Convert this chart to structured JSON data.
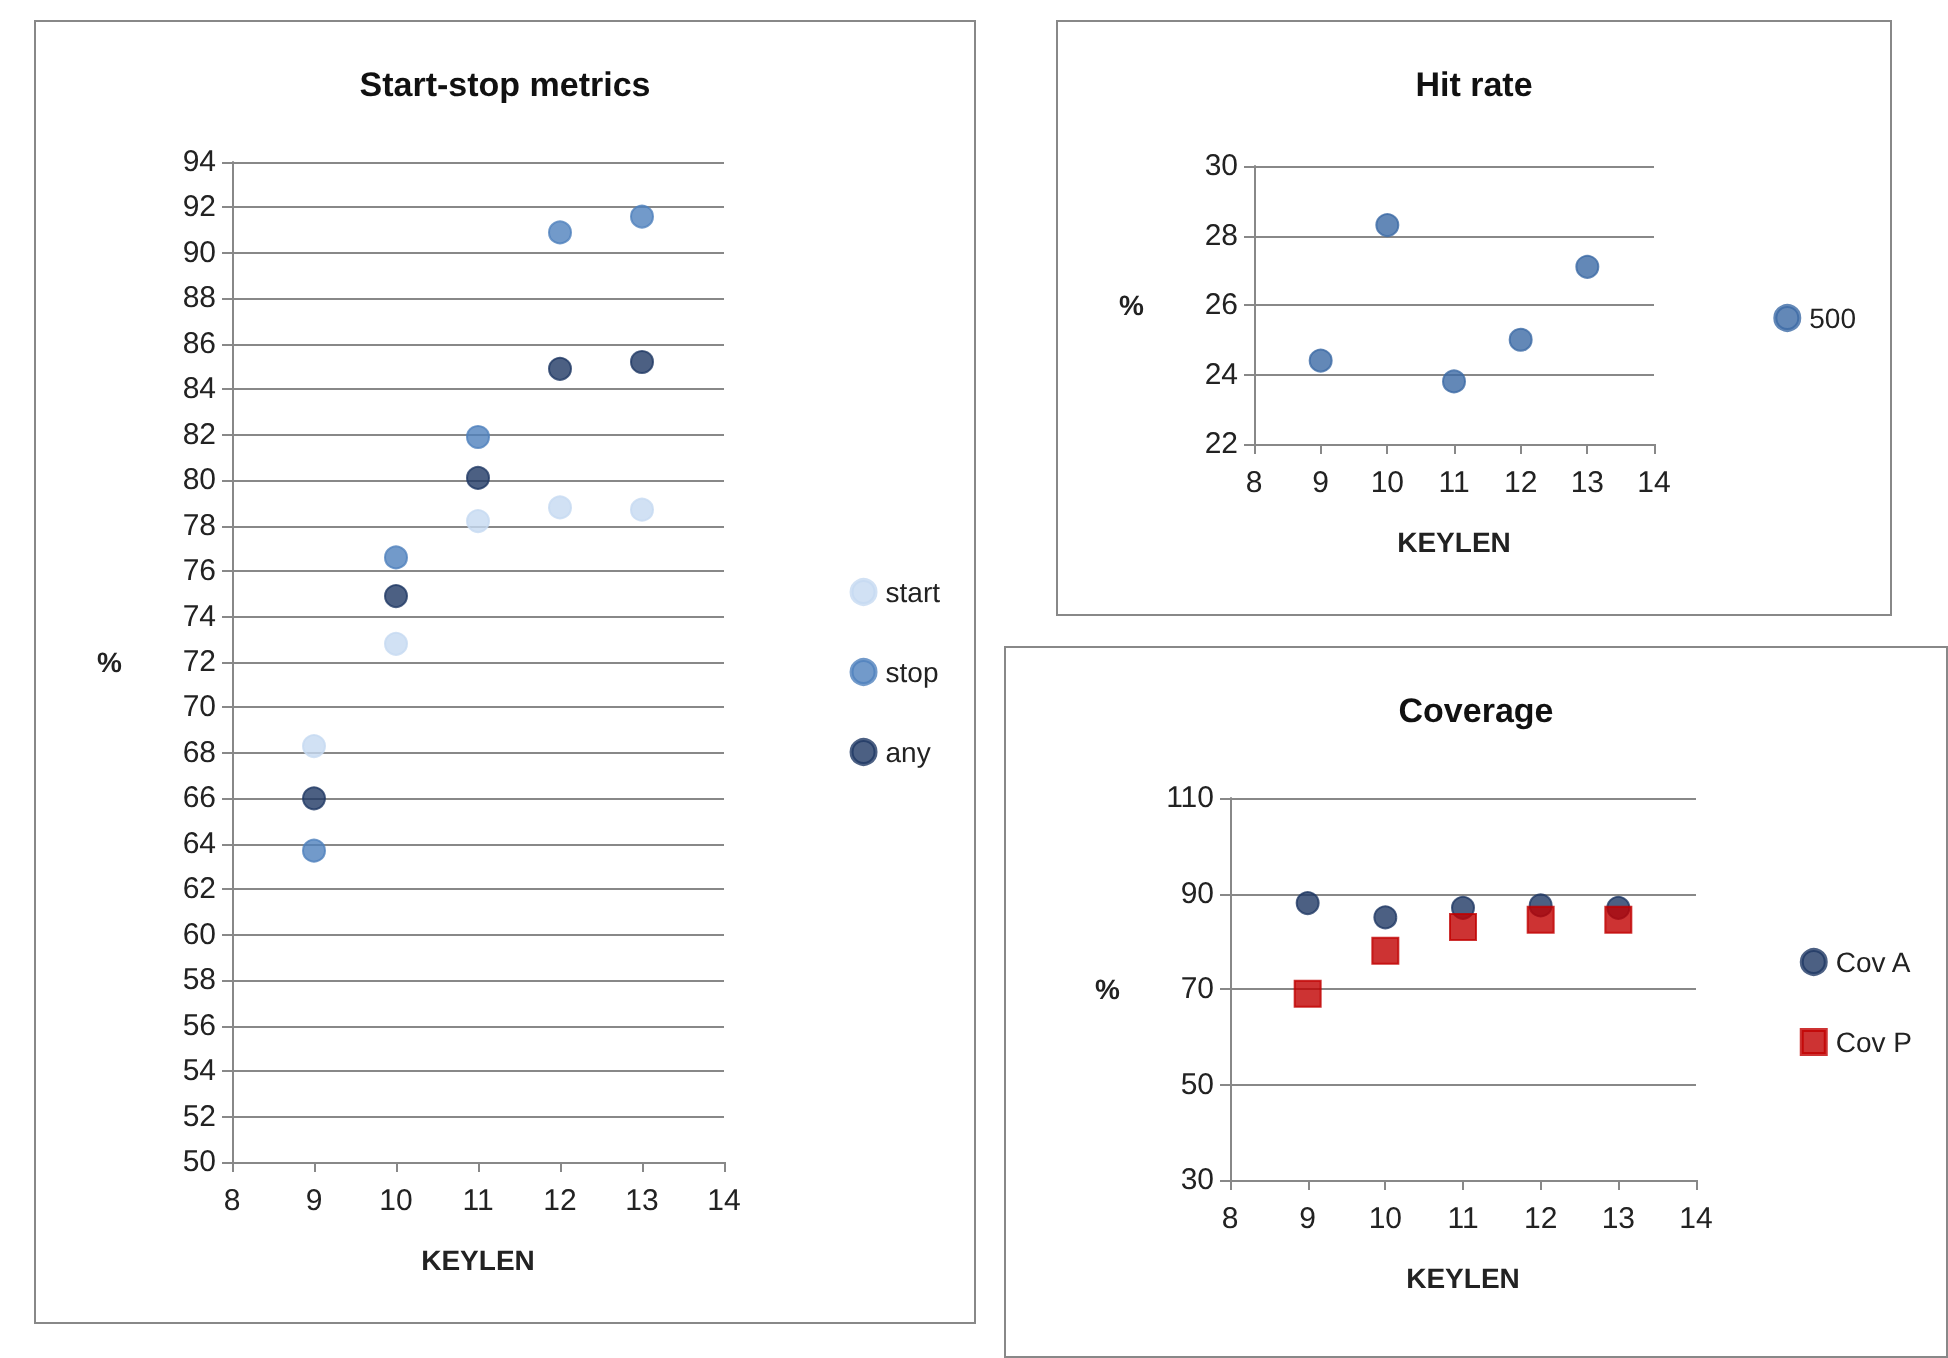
{
  "chart_data": [
    {
      "type": "scatter",
      "title": "Start-stop metrics",
      "xlabel": "KEYLEN",
      "ylabel": "%",
      "x": [
        9,
        10,
        11,
        12,
        13
      ],
      "xlim": [
        8,
        14
      ],
      "xticks": [
        8,
        9,
        10,
        11,
        12,
        13,
        14
      ],
      "ylim": [
        50,
        94
      ],
      "yticks": [
        50,
        52,
        54,
        56,
        58,
        60,
        62,
        64,
        66,
        68,
        70,
        72,
        74,
        76,
        78,
        80,
        82,
        84,
        86,
        88,
        90,
        92,
        94
      ],
      "grid": "y",
      "legend": "right",
      "marker": "circle",
      "series": [
        {
          "name": "start",
          "color": "#c6d9f1",
          "values": [
            68.3,
            72.8,
            78.2,
            78.8,
            78.7
          ]
        },
        {
          "name": "stop",
          "color": "#4f81bd",
          "values": [
            63.7,
            76.6,
            81.9,
            90.9,
            91.6
          ]
        },
        {
          "name": "any",
          "color": "#1f3864",
          "values": [
            66.0,
            74.9,
            80.1,
            84.9,
            85.2
          ]
        }
      ]
    },
    {
      "type": "scatter",
      "title": "Hit rate",
      "xlabel": "KEYLEN",
      "ylabel": "%",
      "x": [
        9,
        10,
        11,
        12,
        13
      ],
      "xlim": [
        8,
        14
      ],
      "xticks": [
        8,
        9,
        10,
        11,
        12,
        13,
        14
      ],
      "ylim": [
        22,
        30
      ],
      "yticks": [
        22,
        24,
        26,
        28,
        30
      ],
      "grid": "y",
      "legend": "right",
      "marker": "circle",
      "series": [
        {
          "name": "500",
          "color": "#3c6aa5",
          "values": [
            24.4,
            28.3,
            23.8,
            25.0,
            27.1
          ]
        }
      ]
    },
    {
      "type": "scatter",
      "title": "Coverage",
      "xlabel": "KEYLEN",
      "ylabel": "%",
      "x": [
        9,
        10,
        11,
        12,
        13
      ],
      "xlim": [
        8,
        14
      ],
      "xticks": [
        8,
        9,
        10,
        11,
        12,
        13,
        14
      ],
      "ylim": [
        30,
        110
      ],
      "yticks": [
        30,
        50,
        70,
        90,
        110
      ],
      "grid": "y",
      "legend": "right",
      "series": [
        {
          "name": "Cov A",
          "color": "#1f3864",
          "marker": "circle",
          "values": [
            88,
            85,
            87,
            87.5,
            87
          ]
        },
        {
          "name": "Cov P",
          "color": "#c00000",
          "marker": "square",
          "values": [
            69,
            78,
            83,
            84.5,
            84.5
          ]
        }
      ]
    }
  ]
}
